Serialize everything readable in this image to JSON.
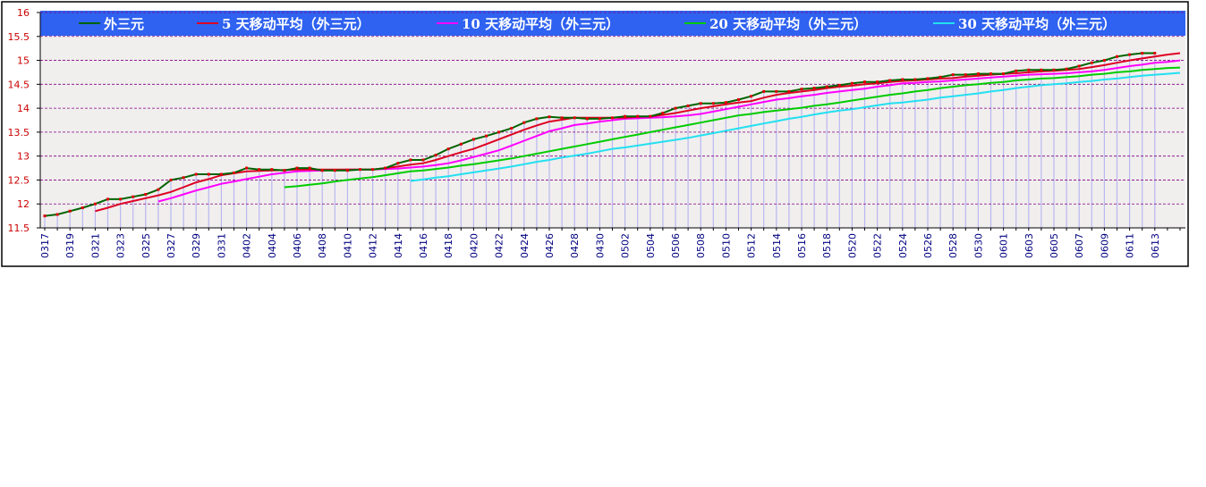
{
  "chart_data": {
    "type": "line",
    "categories": [
      "0317",
      null,
      "0319",
      null,
      "0321",
      null,
      "0323",
      null,
      "0325",
      null,
      "0327",
      null,
      "0329",
      null,
      "0331",
      null,
      "0402",
      null,
      "0404",
      null,
      "0406",
      null,
      "0408",
      null,
      "0410",
      null,
      "0412",
      null,
      "0414",
      null,
      "0416",
      null,
      "0418",
      null,
      "0420",
      null,
      "0422",
      null,
      "0424",
      null,
      "0426",
      null,
      "0428",
      null,
      "0430",
      null,
      "0502",
      null,
      "0504",
      null,
      "0506",
      null,
      "0508",
      null,
      "0510",
      null,
      "0512",
      null,
      "0514",
      null,
      "0516",
      null,
      "0518",
      null,
      "0520",
      null,
      "0522",
      null,
      "0524",
      null,
      "0526",
      null,
      "0528",
      null,
      "0530",
      null,
      "0601",
      null,
      "0603",
      null,
      "0605",
      null,
      "0607",
      null,
      "0609",
      null,
      "0611",
      null,
      "0613",
      null,
      null
    ],
    "series": [
      {
        "name": "外三元",
        "color": "#006400",
        "values": [
          11.75,
          11.78,
          11.85,
          11.92,
          12.0,
          12.1,
          12.1,
          12.15,
          12.2,
          12.3,
          12.5,
          12.55,
          12.62,
          12.62,
          12.62,
          12.65,
          12.75,
          12.72,
          12.72,
          12.7,
          12.75,
          12.75,
          12.7,
          12.7,
          12.7,
          12.72,
          12.72,
          12.75,
          12.85,
          12.92,
          12.92,
          13.02,
          13.15,
          13.25,
          13.35,
          13.42,
          13.5,
          13.58,
          13.7,
          13.78,
          13.82,
          13.8,
          13.8,
          13.78,
          13.78,
          13.8,
          13.83,
          13.83,
          13.83,
          13.9,
          14.0,
          14.05,
          14.1,
          14.1,
          14.12,
          14.18,
          14.25,
          14.35,
          14.35,
          14.35,
          14.4,
          14.42,
          14.45,
          14.48,
          14.52,
          14.55,
          14.55,
          14.58,
          14.6,
          14.6,
          14.62,
          14.65,
          14.7,
          14.7,
          14.72,
          14.72,
          14.72,
          14.78,
          14.8,
          14.8,
          14.8,
          14.82,
          14.88,
          14.95,
          15.0,
          15.08,
          15.12,
          15.15,
          15.15,
          null,
          null
        ]
      },
      {
        "name": "5  天移动平均（外三元）",
        "color": "#dd0022",
        "values": [
          null,
          null,
          null,
          null,
          11.85,
          11.92,
          12.0,
          12.06,
          12.12,
          12.18,
          12.25,
          12.35,
          12.45,
          12.52,
          12.6,
          12.64,
          12.68,
          12.69,
          12.7,
          12.71,
          12.72,
          12.72,
          12.72,
          12.72,
          12.72,
          12.72,
          12.72,
          12.75,
          12.78,
          12.82,
          12.85,
          12.92,
          13.0,
          13.08,
          13.15,
          13.25,
          13.35,
          13.45,
          13.55,
          13.64,
          13.72,
          13.76,
          13.8,
          13.8,
          13.8,
          13.8,
          13.8,
          13.82,
          13.83,
          13.86,
          13.9,
          13.95,
          14.0,
          14.04,
          14.08,
          14.12,
          14.15,
          14.22,
          14.28,
          14.32,
          14.35,
          14.38,
          14.42,
          14.45,
          14.47,
          14.5,
          14.52,
          14.55,
          14.57,
          14.58,
          14.6,
          14.62,
          14.63,
          14.66,
          14.68,
          14.7,
          14.72,
          14.73,
          14.75,
          14.77,
          14.78,
          14.8,
          14.82,
          14.86,
          14.9,
          14.95,
          15.0,
          15.04,
          15.08,
          15.12,
          15.15
        ]
      },
      {
        "name": "10  天移动平均（外三元）",
        "color": "#ff00ff",
        "values": [
          null,
          null,
          null,
          null,
          null,
          null,
          null,
          null,
          null,
          12.05,
          12.12,
          12.2,
          12.28,
          12.35,
          12.42,
          12.47,
          12.52,
          12.57,
          12.62,
          12.65,
          12.68,
          12.69,
          12.7,
          12.71,
          12.72,
          12.72,
          12.72,
          12.73,
          12.74,
          12.76,
          12.78,
          12.81,
          12.85,
          12.91,
          12.98,
          13.05,
          13.12,
          13.22,
          13.32,
          13.42,
          13.52,
          13.58,
          13.65,
          13.68,
          13.72,
          13.75,
          13.78,
          13.79,
          13.8,
          13.81,
          13.83,
          13.85,
          13.88,
          13.93,
          13.98,
          14.03,
          14.08,
          14.13,
          14.18,
          14.21,
          14.25,
          14.28,
          14.32,
          14.35,
          14.38,
          14.41,
          14.45,
          14.48,
          14.52,
          14.53,
          14.55,
          14.56,
          14.58,
          14.6,
          14.62,
          14.64,
          14.66,
          14.68,
          14.7,
          14.71,
          14.72,
          14.73,
          14.75,
          14.77,
          14.8,
          14.84,
          14.88,
          14.91,
          14.95,
          14.97,
          15.0
        ]
      },
      {
        "name": "20  天移动平均（外三元）",
        "color": "#00cc00",
        "values": [
          null,
          null,
          null,
          null,
          null,
          null,
          null,
          null,
          null,
          null,
          null,
          null,
          null,
          null,
          null,
          null,
          null,
          null,
          null,
          12.35,
          12.37,
          12.4,
          12.43,
          12.47,
          12.5,
          12.53,
          12.56,
          12.6,
          12.64,
          12.68,
          12.7,
          12.73,
          12.76,
          12.8,
          12.83,
          12.87,
          12.91,
          12.95,
          13.0,
          13.05,
          13.1,
          13.15,
          13.2,
          13.25,
          13.3,
          13.35,
          13.4,
          13.45,
          13.5,
          13.55,
          13.6,
          13.65,
          13.7,
          13.75,
          13.8,
          13.85,
          13.88,
          13.92,
          13.95,
          13.98,
          14.01,
          14.05,
          14.08,
          14.12,
          14.16,
          14.2,
          14.24,
          14.28,
          14.31,
          14.35,
          14.38,
          14.42,
          14.45,
          14.48,
          14.5,
          14.53,
          14.55,
          14.58,
          14.6,
          14.62,
          14.63,
          14.65,
          14.67,
          14.7,
          14.72,
          14.75,
          14.77,
          14.8,
          14.82,
          14.84,
          14.85
        ]
      },
      {
        "name": "30  天移动平均（外三元）",
        "color": "#22e0f0",
        "values": [
          null,
          null,
          null,
          null,
          null,
          null,
          null,
          null,
          null,
          null,
          null,
          null,
          null,
          null,
          null,
          null,
          null,
          null,
          null,
          null,
          null,
          null,
          null,
          null,
          null,
          null,
          null,
          null,
          null,
          12.48,
          12.51,
          12.55,
          12.58,
          12.62,
          12.66,
          12.7,
          12.74,
          12.78,
          12.83,
          12.88,
          12.92,
          12.97,
          13.01,
          13.05,
          13.1,
          13.15,
          13.18,
          13.22,
          13.26,
          13.3,
          13.34,
          13.38,
          13.43,
          13.48,
          13.53,
          13.58,
          13.63,
          13.68,
          13.73,
          13.78,
          13.82,
          13.87,
          13.91,
          13.95,
          13.98,
          14.02,
          14.06,
          14.1,
          14.12,
          14.15,
          14.18,
          14.22,
          14.25,
          14.28,
          14.31,
          14.35,
          14.38,
          14.42,
          14.45,
          14.48,
          14.5,
          14.52,
          14.55,
          14.57,
          14.6,
          14.62,
          14.65,
          14.68,
          14.7,
          14.72,
          14.74
        ]
      }
    ],
    "ylim": [
      11.5,
      16
    ],
    "yticks": [
      11.5,
      12,
      12.5,
      13,
      13.5,
      14,
      14.5,
      15,
      15.5,
      16
    ],
    "grid": true
  }
}
